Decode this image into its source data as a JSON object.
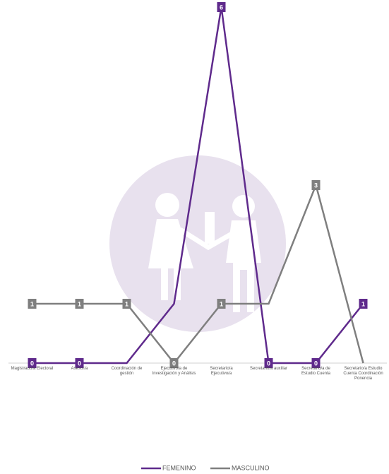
{
  "chart_data": {
    "type": "line",
    "categories": [
      "Magistrado/a Electoral",
      "Asesor/a",
      "Coordinación de gestión",
      "Ejecutivo/a de Investigación y Análisis",
      "Secretario/a Ejecutivo/a",
      "Secretario/a auxiliar",
      "Secretario/a de Estudio Cuenta",
      "Secretario/a Estudio Cuenta Coordinación Ponencia"
    ],
    "series": [
      {
        "name": "FEMENINO",
        "color": "#5f2a8c",
        "values": [
          0,
          0,
          0,
          1,
          6,
          0,
          0,
          1
        ],
        "value_labels": [
          "0",
          "0",
          null,
          null,
          "6",
          "0",
          "0",
          "1"
        ]
      },
      {
        "name": "MASCULINO",
        "color": "#7f7f7f",
        "values": [
          1,
          1,
          1,
          0,
          1,
          1,
          3,
          0
        ],
        "value_labels": [
          "1",
          "1",
          "1",
          "0",
          "1",
          null,
          "3",
          null
        ]
      }
    ],
    "ylim": [
      0,
      6
    ],
    "legend": "bottom"
  }
}
